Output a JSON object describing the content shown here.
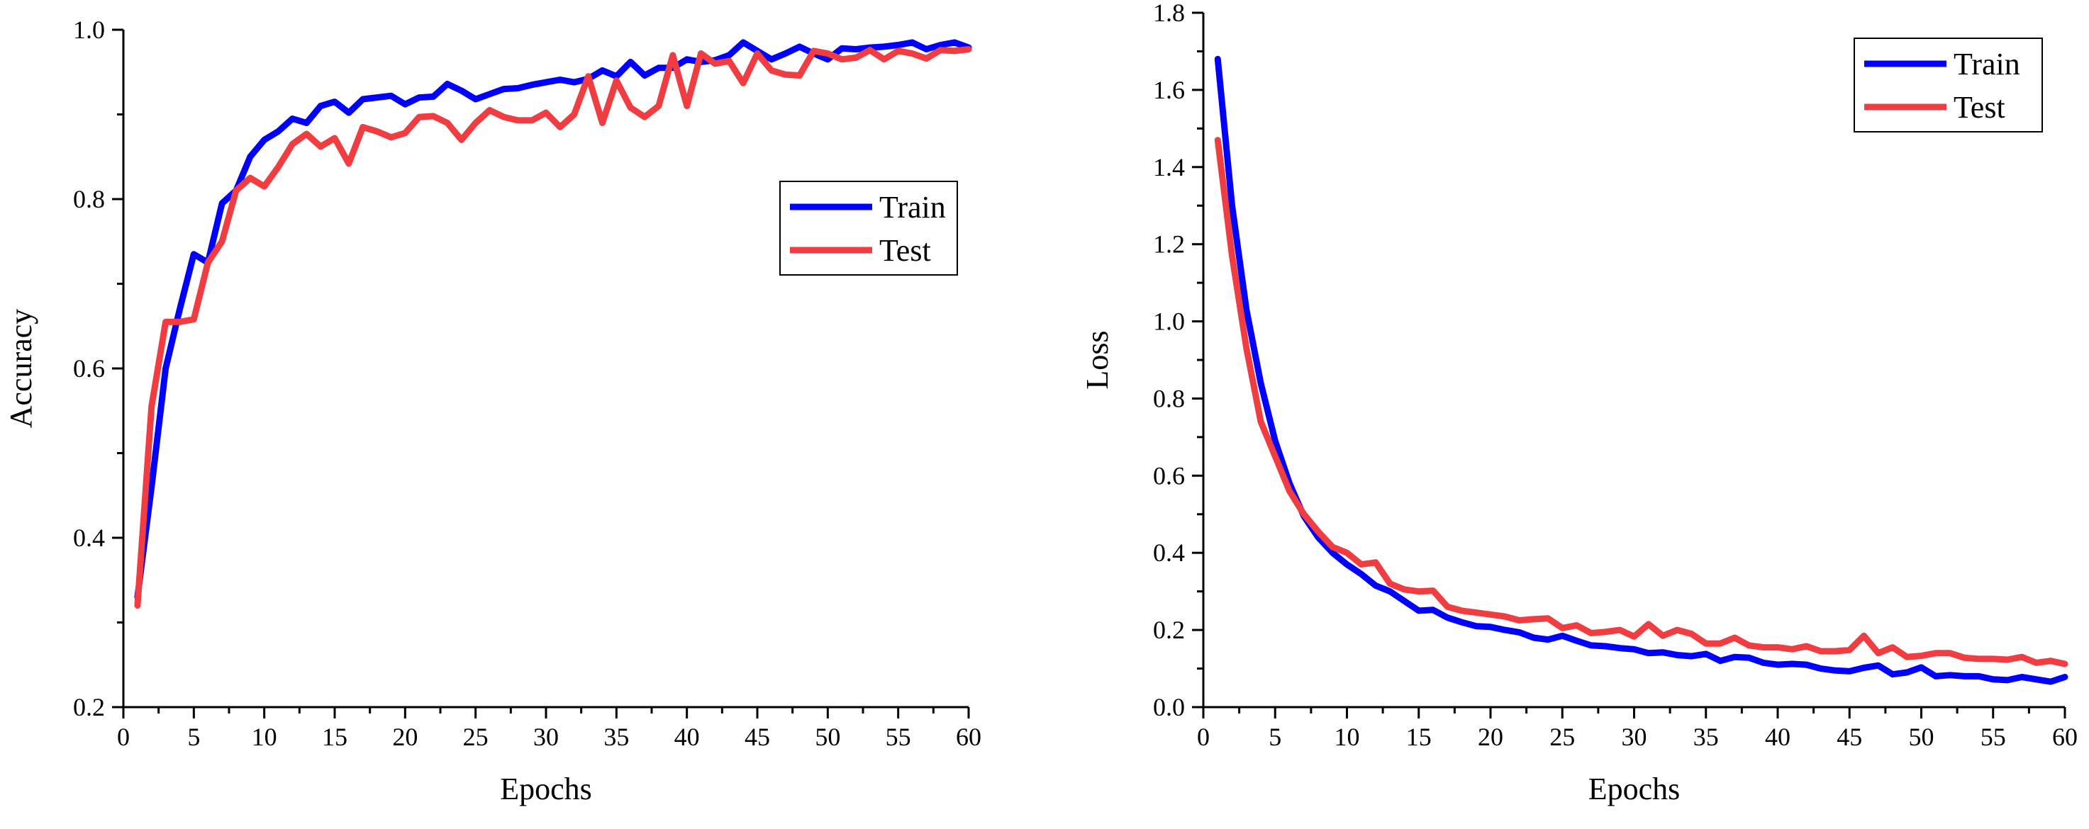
{
  "chart_data": [
    {
      "type": "line",
      "title": "",
      "xlabel": "Epochs",
      "ylabel": "Accuracy",
      "xlim": [
        0,
        60
      ],
      "ylim": [
        0.2,
        1.0
      ],
      "xticks": [
        0,
        5,
        10,
        15,
        20,
        25,
        30,
        35,
        40,
        45,
        50,
        55,
        60
      ],
      "yticks": [
        0.2,
        0.4,
        0.6,
        0.8,
        1.0
      ],
      "xtick_labels": [
        "0",
        "5",
        "10",
        "15",
        "20",
        "25",
        "30",
        "35",
        "40",
        "45",
        "50",
        "55",
        "60"
      ],
      "ytick_labels": [
        "0.2",
        "0.4",
        "0.6",
        "0.8",
        "1.0"
      ],
      "grid": false,
      "legend": "right",
      "x": [
        1,
        2,
        3,
        4,
        5,
        6,
        7,
        8,
        9,
        10,
        11,
        12,
        13,
        14,
        15,
        16,
        17,
        18,
        19,
        20,
        21,
        22,
        23,
        24,
        25,
        26,
        27,
        28,
        29,
        30,
        31,
        32,
        33,
        34,
        35,
        36,
        37,
        38,
        39,
        40,
        41,
        42,
        43,
        44,
        45,
        46,
        47,
        48,
        49,
        50,
        51,
        52,
        53,
        54,
        55,
        56,
        57,
        58,
        59,
        60
      ],
      "series": [
        {
          "name": "Train",
          "color": "#0000ff",
          "values": [
            0.33,
            0.46,
            0.6,
            0.67,
            0.735,
            0.725,
            0.795,
            0.81,
            0.85,
            0.87,
            0.88,
            0.895,
            0.89,
            0.91,
            0.915,
            0.902,
            0.918,
            0.92,
            0.922,
            0.912,
            0.92,
            0.921,
            0.936,
            0.928,
            0.918,
            0.924,
            0.93,
            0.931,
            0.935,
            0.938,
            0.941,
            0.938,
            0.942,
            0.952,
            0.945,
            0.962,
            0.946,
            0.955,
            0.955,
            0.965,
            0.962,
            0.964,
            0.97,
            0.985,
            0.975,
            0.965,
            0.972,
            0.98,
            0.972,
            0.965,
            0.978,
            0.977,
            0.979,
            0.98,
            0.982,
            0.985,
            0.977,
            0.982,
            0.985,
            0.979
          ]
        },
        {
          "name": "Test",
          "color": "#ef3d42",
          "values": [
            0.32,
            0.555,
            0.655,
            0.655,
            0.658,
            0.725,
            0.75,
            0.81,
            0.825,
            0.815,
            0.838,
            0.865,
            0.877,
            0.862,
            0.872,
            0.842,
            0.885,
            0.88,
            0.873,
            0.878,
            0.897,
            0.898,
            0.89,
            0.87,
            0.89,
            0.905,
            0.897,
            0.893,
            0.893,
            0.902,
            0.885,
            0.9,
            0.945,
            0.89,
            0.94,
            0.908,
            0.897,
            0.91,
            0.97,
            0.91,
            0.972,
            0.96,
            0.963,
            0.937,
            0.972,
            0.952,
            0.947,
            0.946,
            0.975,
            0.972,
            0.965,
            0.967,
            0.976,
            0.965,
            0.975,
            0.972,
            0.966,
            0.976,
            0.975,
            0.977
          ]
        }
      ]
    },
    {
      "type": "line",
      "title": "",
      "xlabel": "Epochs",
      "ylabel": "Loss",
      "xlim": [
        0,
        60
      ],
      "ylim": [
        0.0,
        1.8
      ],
      "xticks": [
        0,
        5,
        10,
        15,
        20,
        25,
        30,
        35,
        40,
        45,
        50,
        55,
        60
      ],
      "yticks": [
        0.0,
        0.2,
        0.4,
        0.6,
        0.8,
        1.0,
        1.2,
        1.4,
        1.6,
        1.8
      ],
      "xtick_labels": [
        "0",
        "5",
        "10",
        "15",
        "20",
        "25",
        "30",
        "35",
        "40",
        "45",
        "50",
        "55",
        "60"
      ],
      "ytick_labels": [
        "0.0",
        "0.2",
        "0.4",
        "0.6",
        "0.8",
        "1.0",
        "1.2",
        "1.4",
        "1.6",
        "1.8"
      ],
      "grid": false,
      "legend": "top-right",
      "x": [
        1,
        2,
        3,
        4,
        5,
        6,
        7,
        8,
        9,
        10,
        11,
        12,
        13,
        14,
        15,
        16,
        17,
        18,
        19,
        20,
        21,
        22,
        23,
        24,
        25,
        26,
        27,
        28,
        29,
        30,
        31,
        32,
        33,
        34,
        35,
        36,
        37,
        38,
        39,
        40,
        41,
        42,
        43,
        44,
        45,
        46,
        47,
        48,
        49,
        50,
        51,
        52,
        53,
        54,
        55,
        56,
        57,
        58,
        59,
        60
      ],
      "series": [
        {
          "name": "Train",
          "color": "#0000ff",
          "values": [
            1.68,
            1.3,
            1.03,
            0.84,
            0.69,
            0.58,
            0.495,
            0.44,
            0.4,
            0.37,
            0.345,
            0.315,
            0.3,
            0.275,
            0.25,
            0.252,
            0.232,
            0.22,
            0.21,
            0.208,
            0.2,
            0.194,
            0.18,
            0.175,
            0.185,
            0.172,
            0.16,
            0.158,
            0.153,
            0.15,
            0.14,
            0.142,
            0.135,
            0.132,
            0.138,
            0.12,
            0.13,
            0.128,
            0.115,
            0.11,
            0.112,
            0.11,
            0.1,
            0.095,
            0.093,
            0.102,
            0.108,
            0.085,
            0.09,
            0.103,
            0.08,
            0.083,
            0.08,
            0.08,
            0.072,
            0.07,
            0.078,
            0.072,
            0.066,
            0.078
          ]
        },
        {
          "name": "Test",
          "color": "#ef3d42",
          "values": [
            1.47,
            1.17,
            0.93,
            0.74,
            0.65,
            0.56,
            0.5,
            0.455,
            0.415,
            0.4,
            0.37,
            0.375,
            0.32,
            0.305,
            0.3,
            0.302,
            0.26,
            0.25,
            0.245,
            0.24,
            0.235,
            0.225,
            0.228,
            0.23,
            0.205,
            0.212,
            0.192,
            0.195,
            0.2,
            0.183,
            0.215,
            0.185,
            0.2,
            0.19,
            0.165,
            0.165,
            0.18,
            0.16,
            0.155,
            0.155,
            0.15,
            0.158,
            0.145,
            0.145,
            0.148,
            0.185,
            0.14,
            0.155,
            0.13,
            0.133,
            0.14,
            0.14,
            0.128,
            0.125,
            0.125,
            0.123,
            0.13,
            0.115,
            0.12,
            0.112
          ]
        }
      ]
    }
  ]
}
